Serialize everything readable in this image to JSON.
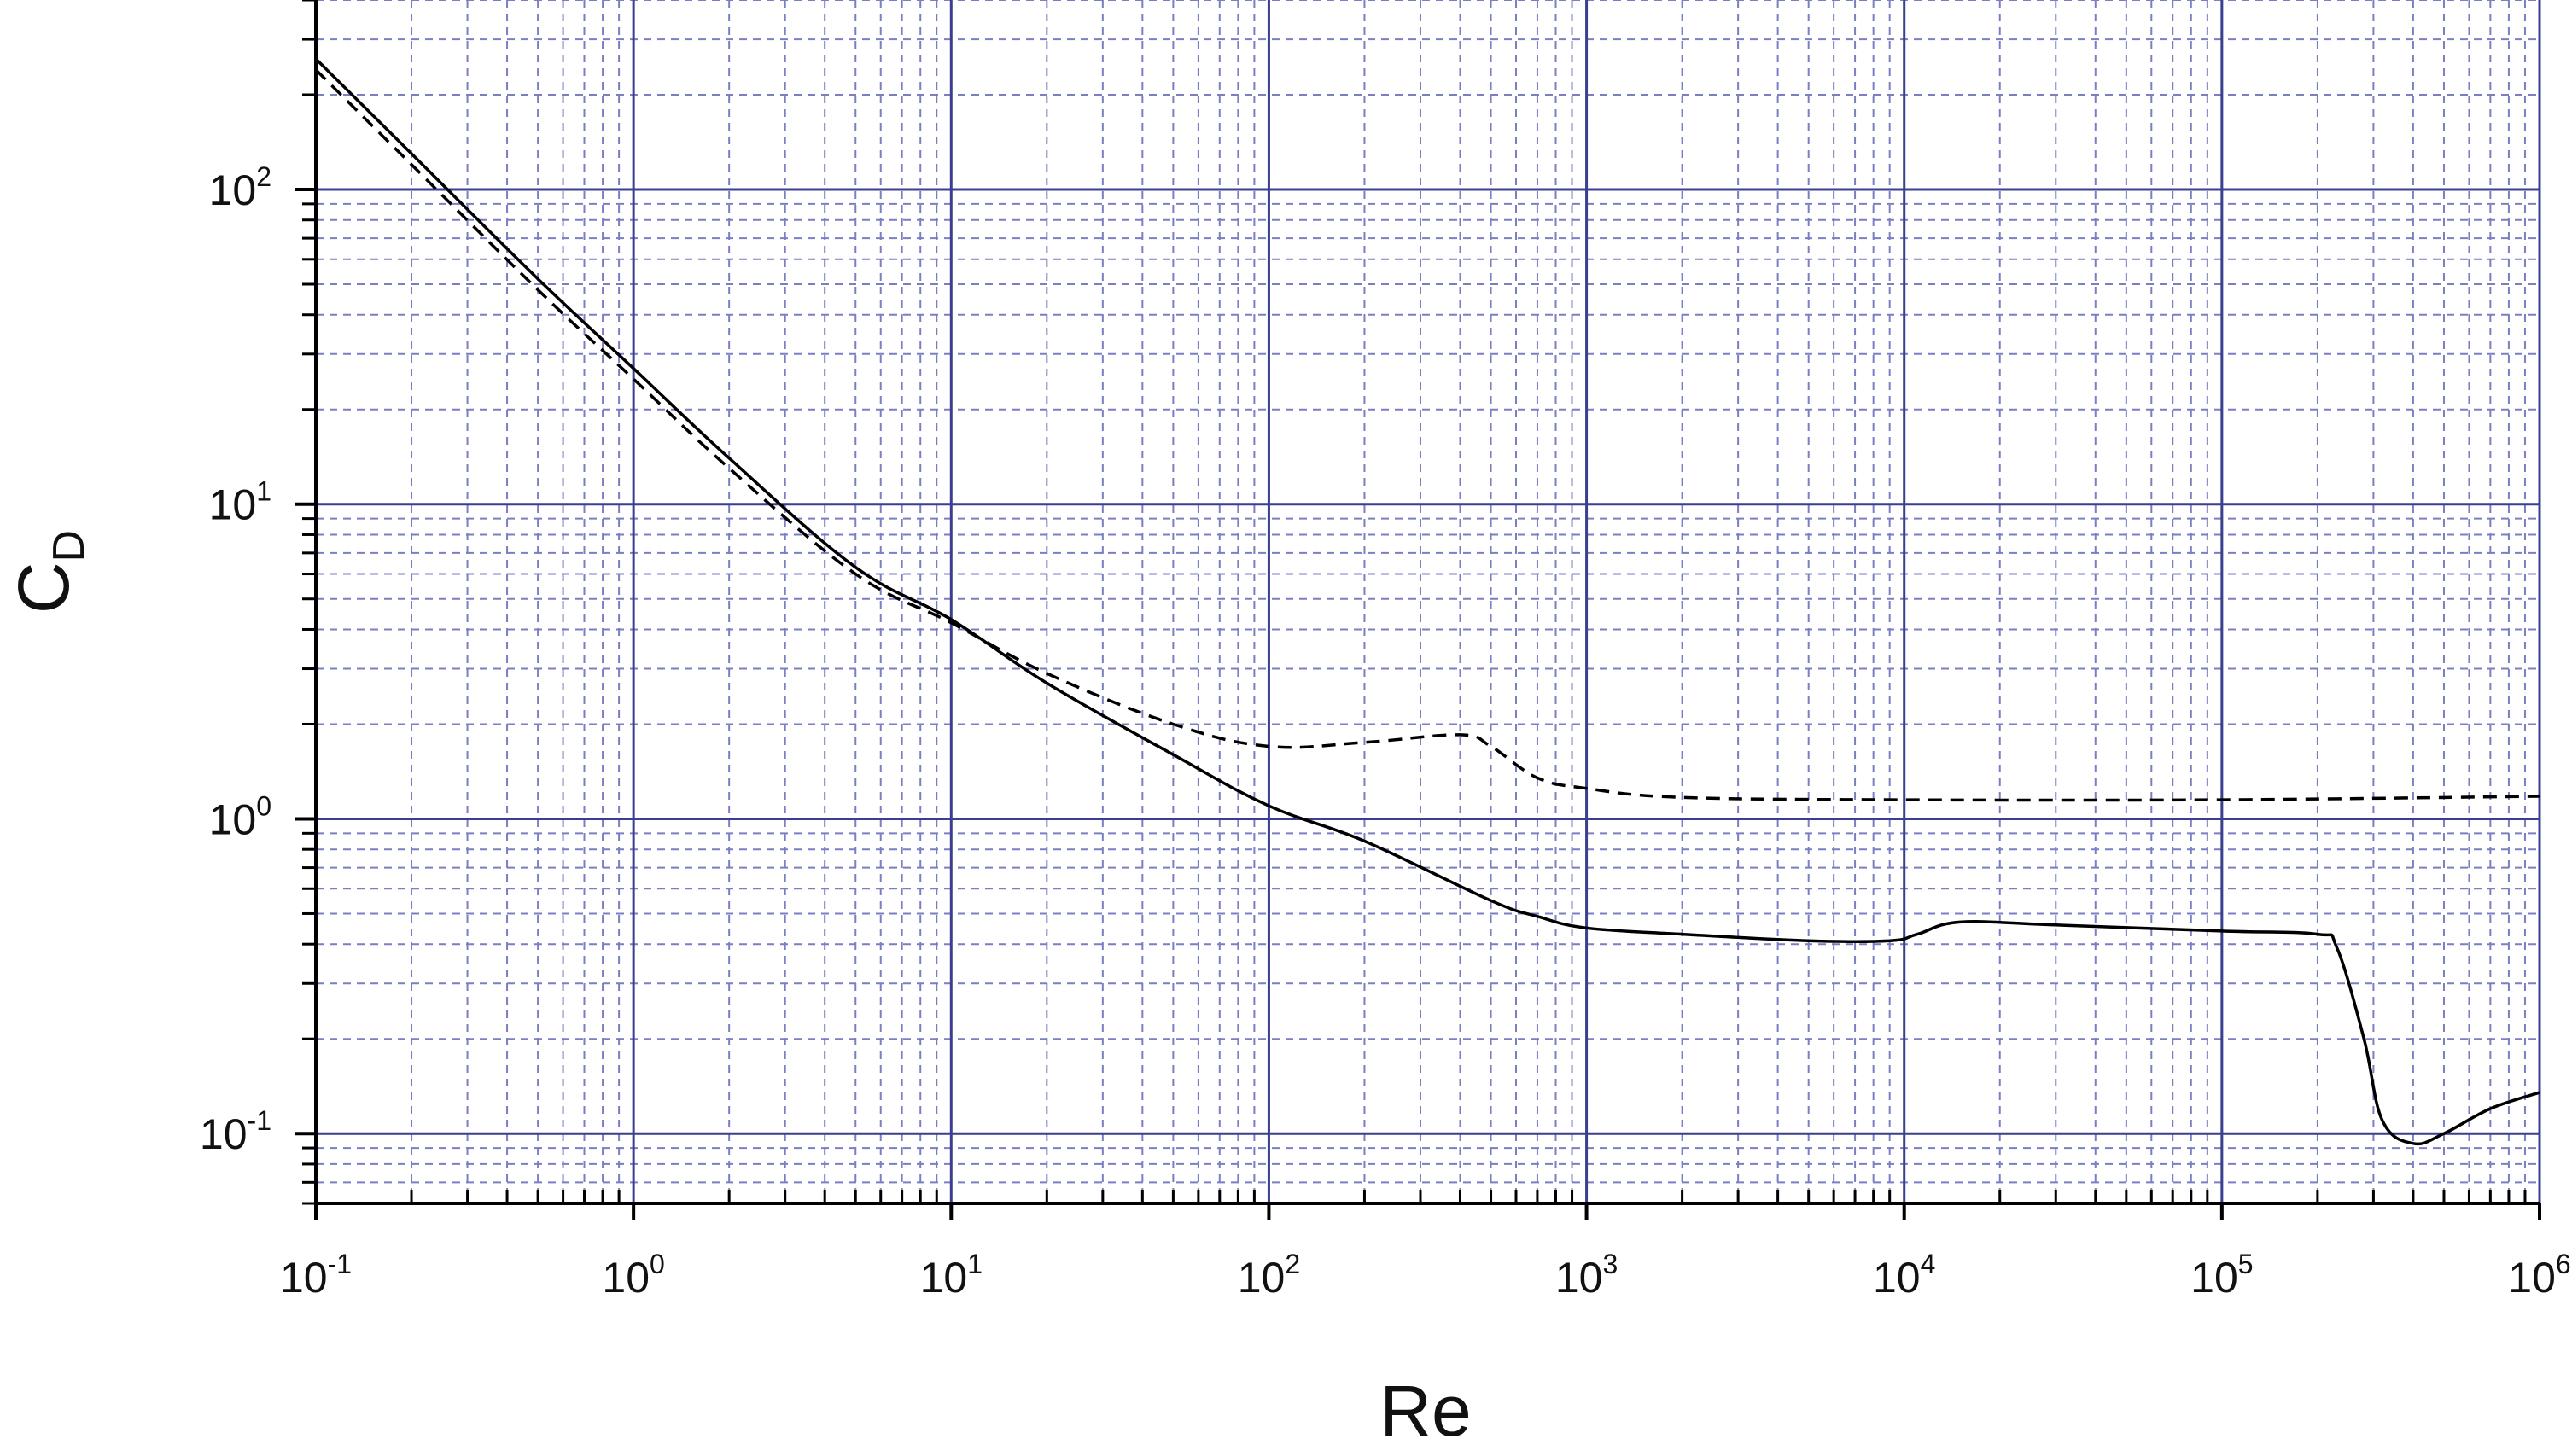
{
  "chart_data": {
    "type": "line",
    "title": "",
    "xlabel": "Re",
    "ylabel": {
      "main": "C",
      "subscript": "D"
    },
    "xscale": "log",
    "yscale": "log",
    "xlim": [
      0.1,
      1000000
    ],
    "ylim": [
      0.06,
      400
    ],
    "grid": {
      "major": true,
      "minor": true,
      "major_color": "#3a3f8f",
      "minor_color": "#7a7fc4",
      "minor_style": "dashed"
    },
    "x_ticks": [
      {
        "base": "10",
        "exp": "-1",
        "value": 0.1
      },
      {
        "base": "10",
        "exp": "0",
        "value": 1
      },
      {
        "base": "10",
        "exp": "1",
        "value": 10
      },
      {
        "base": "10",
        "exp": "2",
        "value": 100
      },
      {
        "base": "10",
        "exp": "3",
        "value": 1000
      },
      {
        "base": "10",
        "exp": "4",
        "value": 10000
      },
      {
        "base": "10",
        "exp": "5",
        "value": 100000
      },
      {
        "base": "10",
        "exp": "6",
        "value": 1000000
      }
    ],
    "y_ticks": [
      {
        "base": "10",
        "exp": "-1",
        "value": 0.1
      },
      {
        "base": "10",
        "exp": "0",
        "value": 1
      },
      {
        "base": "10",
        "exp": "1",
        "value": 10
      },
      {
        "base": "10",
        "exp": "2",
        "value": 100
      }
    ],
    "series": [
      {
        "style": "solid",
        "color": "#000000",
        "points": [
          [
            0.1,
            260
          ],
          [
            0.2,
            130
          ],
          [
            0.5,
            52
          ],
          [
            1,
            27
          ],
          [
            2,
            14
          ],
          [
            5,
            6.3
          ],
          [
            10,
            4.3
          ],
          [
            20,
            2.7
          ],
          [
            50,
            1.6
          ],
          [
            100,
            1.1
          ],
          [
            200,
            0.85
          ],
          [
            500,
            0.55
          ],
          [
            700,
            0.49
          ],
          [
            1000,
            0.45
          ],
          [
            2000,
            0.43
          ],
          [
            5000,
            0.41
          ],
          [
            9000,
            0.41
          ],
          [
            11000,
            0.43
          ],
          [
            15000,
            0.47
          ],
          [
            30000,
            0.46
          ],
          [
            100000,
            0.44
          ],
          [
            200000,
            0.43
          ],
          [
            230000,
            0.39
          ],
          [
            280000,
            0.2
          ],
          [
            320000,
            0.11
          ],
          [
            400000,
            0.093
          ],
          [
            500000,
            0.1
          ],
          [
            700000,
            0.12
          ],
          [
            1000000,
            0.135
          ]
        ]
      },
      {
        "style": "dashed",
        "color": "#000000",
        "points": [
          [
            0.1,
            240
          ],
          [
            0.2,
            120
          ],
          [
            0.5,
            48
          ],
          [
            1,
            25
          ],
          [
            2,
            13
          ],
          [
            5,
            6
          ],
          [
            10,
            4.2
          ],
          [
            20,
            2.9
          ],
          [
            50,
            2
          ],
          [
            100,
            1.7
          ],
          [
            200,
            1.75
          ],
          [
            400,
            1.85
          ],
          [
            500,
            1.7
          ],
          [
            700,
            1.35
          ],
          [
            1000,
            1.25
          ],
          [
            2000,
            1.17
          ],
          [
            10000,
            1.15
          ],
          [
            100000,
            1.15
          ],
          [
            1000000,
            1.18
          ]
        ]
      }
    ]
  }
}
